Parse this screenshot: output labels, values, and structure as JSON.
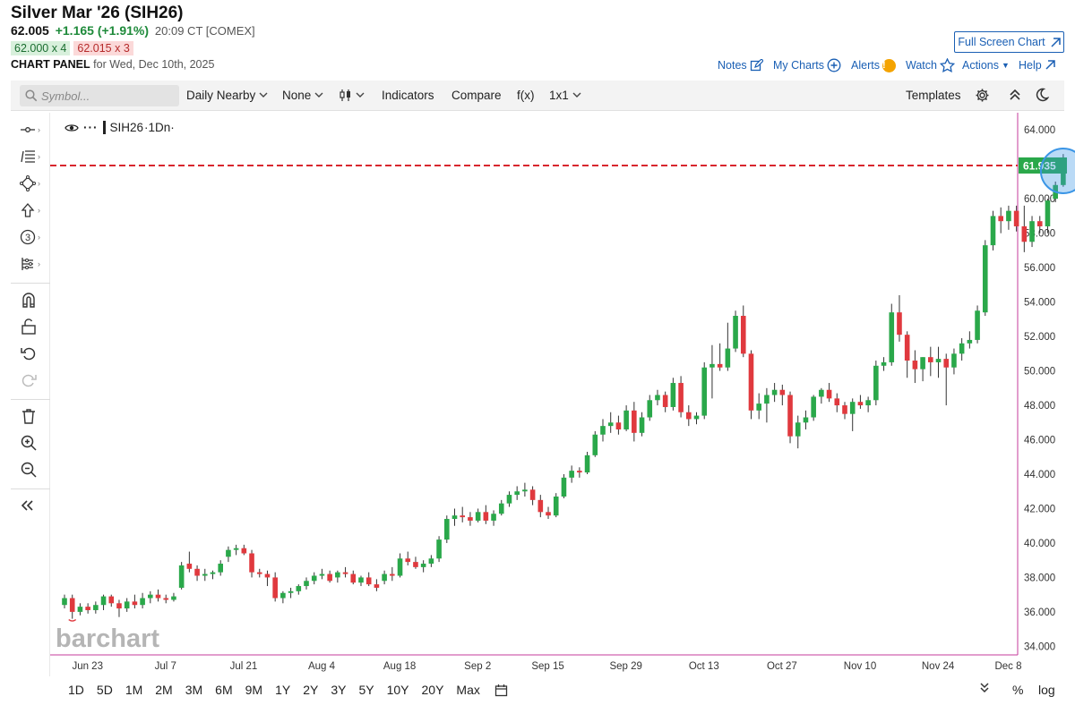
{
  "header": {
    "title": "Silver Mar '26 (SIH26)",
    "last": "62.005",
    "change": "+1.165 (+1.91%)",
    "time": "20:09 CT [COMEX]",
    "bid": "62.000 x 4",
    "ask": "62.015 x 3",
    "panel_label": "CHART PANEL",
    "panel_date": "for Wed, Dec 10th, 2025"
  },
  "links": {
    "full_screen": "Full Screen Chart",
    "notes": "Notes",
    "my_charts": "My Charts",
    "alerts": "Alerts",
    "alerts_badge": "!",
    "watch": "Watch",
    "actions": "Actions",
    "help": "Help"
  },
  "toolbar": {
    "symbol_placeholder": "Symbol...",
    "period": "Daily Nearby",
    "overlay": "None",
    "indicators": "Indicators",
    "compare": "Compare",
    "fx": "f(x)",
    "layout": "1x1",
    "templates": "Templates"
  },
  "legend": {
    "symbol": "SIH26",
    "interval": "·1Dn·"
  },
  "watermark": "barchart",
  "colors": {
    "up": "#2aa84a",
    "down": "#e0393e",
    "price_line": "#d8262e",
    "accent": "#1a5fb4",
    "highlight": "#3a95e6"
  },
  "periods": [
    "1D",
    "5D",
    "1M",
    "2M",
    "3M",
    "6M",
    "9M",
    "1Y",
    "2Y",
    "3Y",
    "5Y",
    "10Y",
    "20Y",
    "Max"
  ],
  "bottom_right": {
    "percent": "%",
    "log": "log"
  },
  "chart_data": {
    "type": "candlestick",
    "symbol": "SIH26",
    "current_price": 61.935,
    "current_price_label": "61.935",
    "ylim": [
      33.5,
      65
    ],
    "y_ticks": [
      "34.000",
      "36.000",
      "38.000",
      "40.000",
      "42.000",
      "44.000",
      "46.000",
      "48.000",
      "50.000",
      "52.000",
      "54.000",
      "56.000",
      "58.000",
      "60.000",
      "62.000",
      "64.000"
    ],
    "x_labels": [
      {
        "label": "Jun 23",
        "index": 1
      },
      {
        "label": "Jul 7",
        "index": 11
      },
      {
        "label": "Jul 21",
        "index": 21
      },
      {
        "label": "Aug 4",
        "index": 31
      },
      {
        "label": "Aug 18",
        "index": 41
      },
      {
        "label": "Sep 2",
        "index": 51
      },
      {
        "label": "Sep 15",
        "index": 60
      },
      {
        "label": "Sep 29",
        "index": 70
      },
      {
        "label": "Oct 13",
        "index": 80
      },
      {
        "label": "Oct 27",
        "index": 90
      },
      {
        "label": "Nov 10",
        "index": 100
      },
      {
        "label": "Nov 24",
        "index": 110
      },
      {
        "label": "Dec 8",
        "index": 119
      }
    ],
    "ohlc": [
      [
        36.4,
        37.0,
        36.2,
        36.8
      ],
      [
        36.8,
        37.0,
        35.6,
        36.0
      ],
      [
        36.0,
        36.5,
        35.8,
        36.3
      ],
      [
        36.3,
        36.5,
        35.9,
        36.1
      ],
      [
        36.1,
        36.6,
        35.9,
        36.4
      ],
      [
        36.4,
        37.0,
        36.1,
        36.9
      ],
      [
        36.9,
        37.0,
        36.3,
        36.5
      ],
      [
        36.5,
        36.7,
        35.7,
        36.2
      ],
      [
        36.2,
        36.8,
        36.0,
        36.6
      ],
      [
        36.6,
        37.0,
        36.2,
        36.4
      ],
      [
        36.4,
        37.1,
        36.2,
        36.8
      ],
      [
        36.8,
        37.2,
        36.5,
        37.0
      ],
      [
        37.0,
        37.3,
        36.6,
        36.8
      ],
      [
        36.8,
        37.0,
        36.5,
        36.7
      ],
      [
        36.7,
        37.1,
        36.6,
        36.9
      ],
      [
        37.4,
        38.9,
        37.3,
        38.7
      ],
      [
        38.8,
        39.5,
        38.3,
        38.5
      ],
      [
        38.5,
        38.7,
        37.8,
        38.1
      ],
      [
        38.1,
        38.5,
        37.8,
        38.2
      ],
      [
        38.2,
        38.4,
        37.9,
        38.3
      ],
      [
        38.3,
        39.0,
        38.1,
        38.8
      ],
      [
        39.2,
        39.8,
        38.9,
        39.6
      ],
      [
        39.6,
        39.9,
        39.3,
        39.7
      ],
      [
        39.7,
        39.9,
        39.3,
        39.4
      ],
      [
        39.4,
        39.6,
        38.0,
        38.3
      ],
      [
        38.3,
        38.5,
        38.0,
        38.2
      ],
      [
        38.2,
        38.4,
        37.5,
        38.0
      ],
      [
        38.0,
        38.3,
        36.6,
        36.8
      ],
      [
        36.8,
        37.2,
        36.5,
        37.1
      ],
      [
        37.1,
        37.4,
        36.8,
        37.2
      ],
      [
        37.2,
        37.6,
        37.0,
        37.5
      ],
      [
        37.5,
        38.0,
        37.3,
        37.8
      ],
      [
        37.8,
        38.3,
        37.6,
        38.1
      ],
      [
        38.1,
        38.5,
        37.9,
        38.2
      ],
      [
        38.2,
        38.4,
        37.7,
        37.8
      ],
      [
        38.0,
        38.4,
        37.7,
        38.3
      ],
      [
        38.3,
        38.6,
        38.0,
        38.2
      ],
      [
        38.2,
        38.4,
        37.6,
        37.7
      ],
      [
        37.7,
        38.1,
        37.5,
        38.0
      ],
      [
        38.0,
        38.3,
        37.5,
        37.6
      ],
      [
        37.6,
        37.9,
        37.2,
        37.4
      ],
      [
        37.8,
        38.4,
        37.6,
        38.2
      ],
      [
        38.2,
        38.6,
        37.8,
        38.1
      ],
      [
        38.1,
        39.4,
        38.0,
        39.1
      ],
      [
        39.1,
        39.5,
        38.7,
        38.9
      ],
      [
        38.9,
        39.2,
        38.5,
        38.6
      ],
      [
        38.6,
        39.0,
        38.3,
        38.8
      ],
      [
        38.8,
        39.3,
        38.6,
        39.1
      ],
      [
        39.1,
        40.4,
        38.9,
        40.2
      ],
      [
        40.2,
        41.6,
        40.0,
        41.4
      ],
      [
        41.4,
        42.0,
        41.0,
        41.6
      ],
      [
        41.6,
        42.1,
        41.2,
        41.5
      ],
      [
        41.5,
        41.8,
        41.0,
        41.3
      ],
      [
        41.3,
        42.0,
        41.2,
        41.8
      ],
      [
        41.8,
        42.2,
        41.1,
        41.3
      ],
      [
        41.3,
        41.9,
        41.0,
        41.7
      ],
      [
        41.7,
        42.5,
        41.6,
        42.3
      ],
      [
        42.3,
        43.0,
        42.1,
        42.8
      ],
      [
        42.8,
        43.3,
        42.5,
        43.0
      ],
      [
        43.0,
        43.5,
        42.7,
        43.1
      ],
      [
        43.1,
        43.3,
        42.2,
        42.5
      ],
      [
        42.5,
        42.8,
        41.5,
        41.8
      ],
      [
        41.8,
        42.1,
        41.4,
        41.6
      ],
      [
        41.6,
        42.9,
        41.5,
        42.7
      ],
      [
        42.7,
        44.0,
        42.6,
        43.8
      ],
      [
        43.8,
        44.5,
        43.5,
        44.2
      ],
      [
        44.2,
        44.4,
        43.8,
        44.1
      ],
      [
        44.1,
        45.3,
        44.0,
        45.1
      ],
      [
        45.1,
        46.5,
        45.0,
        46.3
      ],
      [
        46.3,
        47.2,
        45.9,
        46.8
      ],
      [
        46.8,
        47.6,
        46.4,
        47.0
      ],
      [
        47.0,
        47.4,
        46.3,
        46.6
      ],
      [
        46.6,
        48.0,
        46.5,
        47.7
      ],
      [
        47.7,
        48.2,
        45.9,
        46.4
      ],
      [
        46.4,
        47.6,
        46.2,
        47.3
      ],
      [
        47.3,
        48.6,
        47.1,
        48.3
      ],
      [
        48.3,
        48.9,
        48.0,
        48.6
      ],
      [
        48.6,
        48.8,
        47.6,
        47.9
      ],
      [
        47.9,
        49.6,
        47.7,
        49.3
      ],
      [
        49.3,
        49.7,
        47.3,
        47.6
      ],
      [
        47.6,
        48.0,
        46.8,
        47.2
      ],
      [
        47.2,
        47.6,
        46.9,
        47.4
      ],
      [
        47.4,
        50.5,
        47.2,
        50.2
      ],
      [
        50.2,
        51.5,
        48.4,
        50.4
      ],
      [
        50.4,
        51.6,
        50.0,
        50.2
      ],
      [
        50.2,
        52.8,
        50.0,
        51.3
      ],
      [
        51.3,
        53.5,
        51.1,
        53.2
      ],
      [
        53.2,
        53.8,
        50.8,
        51.0
      ],
      [
        51.0,
        51.2,
        47.2,
        47.7
      ],
      [
        47.7,
        48.7,
        47.2,
        48.1
      ],
      [
        48.1,
        49.0,
        47.0,
        48.6
      ],
      [
        48.6,
        49.3,
        48.2,
        48.9
      ],
      [
        48.9,
        49.2,
        48.0,
        48.6
      ],
      [
        48.6,
        48.8,
        45.8,
        46.2
      ],
      [
        46.2,
        47.4,
        45.5,
        47.0
      ],
      [
        47.0,
        47.7,
        46.6,
        47.3
      ],
      [
        47.3,
        48.6,
        47.1,
        48.5
      ],
      [
        48.5,
        49.0,
        48.1,
        48.9
      ],
      [
        48.9,
        49.3,
        48.2,
        48.4
      ],
      [
        48.4,
        48.7,
        47.6,
        48.0
      ],
      [
        48.0,
        48.2,
        47.2,
        47.5
      ],
      [
        47.5,
        48.4,
        46.5,
        48.2
      ],
      [
        48.2,
        48.6,
        47.8,
        48.0
      ],
      [
        48.0,
        48.5,
        47.6,
        48.3
      ],
      [
        48.3,
        50.6,
        48.0,
        50.3
      ],
      [
        50.3,
        50.8,
        50.0,
        50.5
      ],
      [
        50.5,
        53.9,
        50.3,
        53.4
      ],
      [
        53.4,
        54.4,
        51.7,
        52.1
      ],
      [
        52.1,
        52.3,
        49.6,
        50.6
      ],
      [
        50.6,
        51.2,
        49.3,
        50.1
      ],
      [
        50.1,
        50.8,
        49.4,
        50.8
      ],
      [
        50.8,
        51.4,
        49.7,
        50.5
      ],
      [
        50.5,
        51.4,
        49.6,
        50.7
      ],
      [
        50.7,
        51.0,
        48.0,
        50.2
      ],
      [
        50.2,
        51.3,
        49.8,
        51.0
      ],
      [
        51.0,
        51.9,
        50.6,
        51.6
      ],
      [
        51.6,
        52.3,
        51.3,
        51.8
      ],
      [
        51.8,
        53.8,
        51.6,
        53.5
      ],
      [
        53.4,
        57.6,
        53.2,
        57.3
      ],
      [
        57.3,
        59.3,
        57.0,
        59.0
      ],
      [
        59.0,
        59.5,
        58.0,
        58.7
      ],
      [
        58.7,
        59.6,
        58.2,
        59.3
      ],
      [
        59.3,
        59.6,
        58.1,
        58.4
      ],
      [
        58.4,
        59.6,
        56.9,
        57.5
      ],
      [
        57.5,
        59.0,
        57.2,
        58.7
      ],
      [
        58.7,
        59.0,
        58.0,
        58.4
      ],
      [
        58.4,
        60.0,
        58.0,
        59.9
      ],
      [
        60.0,
        61.0,
        59.8,
        60.8
      ],
      [
        60.8,
        62.6,
        60.7,
        61.9
      ]
    ]
  }
}
